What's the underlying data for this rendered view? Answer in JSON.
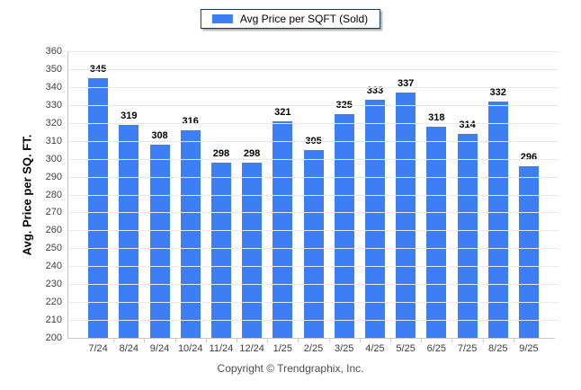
{
  "legend": {
    "label": "Avg Price per SQFT (Sold)"
  },
  "footer": {
    "text": "Copyright © Trendgraphix, Inc."
  },
  "colors": {
    "bar": "#3e7ef4",
    "legend_border": "#16365c",
    "grid": "#e9e9e9",
    "axis": "#c8c8c8"
  },
  "chart_data": {
    "type": "bar",
    "title": "",
    "xlabel": "",
    "ylabel": "Avg. Price per SQ. FT.",
    "ylim": [
      200,
      360
    ],
    "ytick_step": 10,
    "grid": true,
    "legend_position": "top-center",
    "series_name": "Avg Price per SQFT (Sold)",
    "categories": [
      "7/24",
      "8/24",
      "9/24",
      "10/24",
      "11/24",
      "12/24",
      "1/25",
      "2/25",
      "3/25",
      "4/25",
      "5/25",
      "6/25",
      "7/25",
      "8/25",
      "9/25"
    ],
    "values": [
      345,
      319,
      308,
      316,
      298,
      298,
      321,
      305,
      325,
      333,
      337,
      318,
      314,
      332,
      296
    ]
  }
}
